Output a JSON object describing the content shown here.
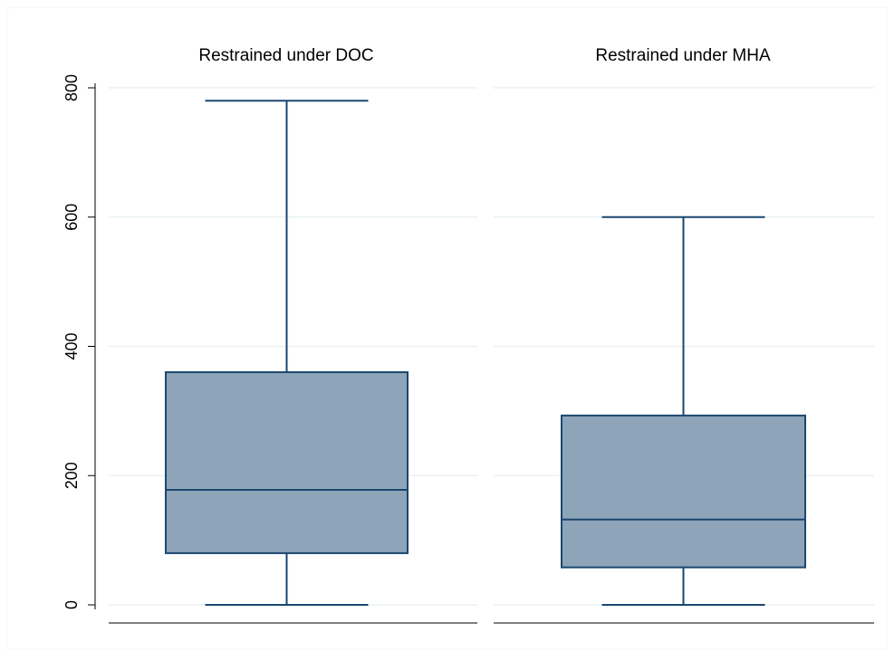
{
  "chart_data": {
    "type": "box",
    "panels": [
      {
        "title": "Restrained under DOC",
        "min": 0,
        "q1": 80,
        "median": 178,
        "q3": 360,
        "max": 780
      },
      {
        "title": "Restrained under MHA",
        "min": 0,
        "q1": 58,
        "median": 132,
        "q3": 293,
        "max": 600
      }
    ],
    "yticks": [
      0,
      200,
      400,
      600,
      800
    ],
    "ylim": [
      -20,
      830
    ],
    "grid": true,
    "colors": {
      "box_fill": "#8ea4b8",
      "box_stroke": "#1a476f",
      "grid": "#eaf0f3",
      "axis": "#000000"
    }
  }
}
